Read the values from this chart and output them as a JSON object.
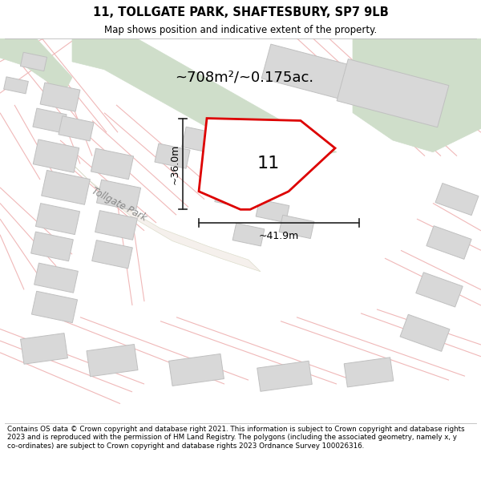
{
  "title_line1": "11, TOLLGATE PARK, SHAFTESBURY, SP7 9LB",
  "title_line2": "Map shows position and indicative extent of the property.",
  "footer_text": "Contains OS data © Crown copyright and database right 2021. This information is subject to Crown copyright and database rights 2023 and is reproduced with the permission of HM Land Registry. The polygons (including the associated geometry, namely x, y co-ordinates) are subject to Crown copyright and database rights 2023 Ordnance Survey 100026316.",
  "area_label": "~708m²/~0.175ac.",
  "width_label": "~41.9m",
  "height_label": "~36.0m",
  "plot_number": "11",
  "road_label": "Tollgate Park",
  "bg_color": "#ffffff",
  "map_bg": "#ffffff",
  "plot_outline_color": "#dd0000",
  "building_fill": "#d8d8d8",
  "building_stroke": "#c0c0c0",
  "green_fill": "#cfdeca",
  "green_stroke": "#cfdeca",
  "dim_line_color": "#222222",
  "road_line_color": "#f0b8b8",
  "road_line_color2": "#e8a8a8"
}
